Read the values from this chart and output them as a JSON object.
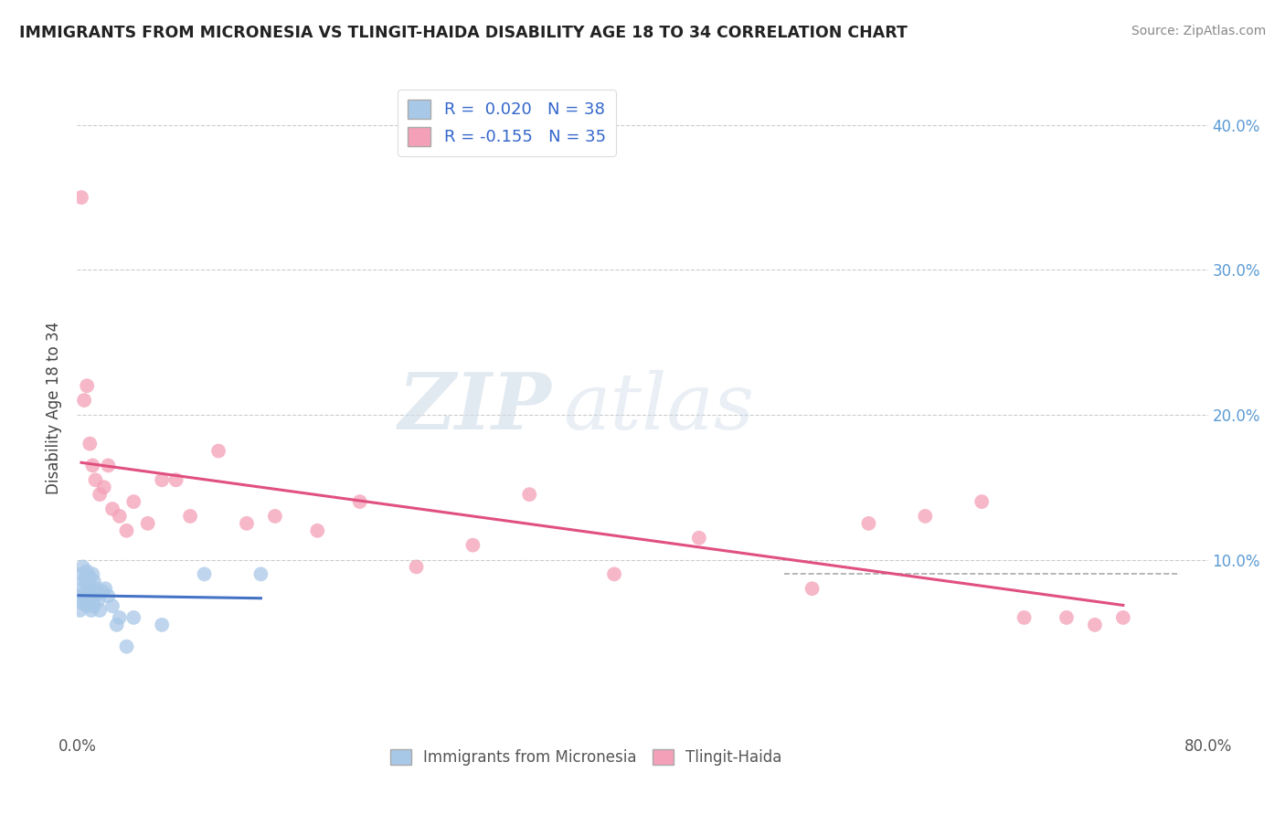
{
  "title": "IMMIGRANTS FROM MICRONESIA VS TLINGIT-HAIDA DISABILITY AGE 18 TO 34 CORRELATION CHART",
  "source": "Source: ZipAtlas.com",
  "ylabel": "Disability Age 18 to 34",
  "xlim": [
    0.0,
    0.8
  ],
  "ylim": [
    -0.02,
    0.43
  ],
  "blue_R": "0.020",
  "blue_N": "38",
  "pink_R": "-0.155",
  "pink_N": "35",
  "blue_color": "#a8c8e8",
  "pink_color": "#f4a0b8",
  "blue_line_color": "#4472c4",
  "pink_line_color": "#e05080",
  "legend_label_blue": "Immigrants from Micronesia",
  "legend_label_pink": "Tlingit-Haida",
  "watermark_zip": "ZIP",
  "watermark_atlas": "atlas",
  "blue_scatter_x": [
    0.001,
    0.002,
    0.003,
    0.003,
    0.004,
    0.004,
    0.005,
    0.005,
    0.006,
    0.006,
    0.007,
    0.007,
    0.007,
    0.008,
    0.008,
    0.009,
    0.009,
    0.01,
    0.01,
    0.011,
    0.011,
    0.012,
    0.012,
    0.013,
    0.014,
    0.015,
    0.016,
    0.018,
    0.02,
    0.022,
    0.025,
    0.028,
    0.03,
    0.035,
    0.04,
    0.06,
    0.09,
    0.13
  ],
  "blue_scatter_y": [
    0.075,
    0.065,
    0.08,
    0.09,
    0.07,
    0.095,
    0.075,
    0.085,
    0.072,
    0.088,
    0.068,
    0.078,
    0.092,
    0.07,
    0.082,
    0.074,
    0.088,
    0.065,
    0.08,
    0.072,
    0.09,
    0.068,
    0.085,
    0.075,
    0.08,
    0.072,
    0.065,
    0.078,
    0.08,
    0.075,
    0.068,
    0.055,
    0.06,
    0.04,
    0.06,
    0.055,
    0.09,
    0.09
  ],
  "pink_scatter_x": [
    0.003,
    0.005,
    0.007,
    0.009,
    0.011,
    0.013,
    0.016,
    0.019,
    0.022,
    0.025,
    0.03,
    0.035,
    0.04,
    0.05,
    0.06,
    0.07,
    0.08,
    0.1,
    0.12,
    0.14,
    0.17,
    0.2,
    0.24,
    0.28,
    0.32,
    0.38,
    0.44,
    0.52,
    0.56,
    0.6,
    0.64,
    0.67,
    0.7,
    0.72,
    0.74
  ],
  "pink_scatter_y": [
    0.35,
    0.21,
    0.22,
    0.18,
    0.165,
    0.155,
    0.145,
    0.15,
    0.165,
    0.135,
    0.13,
    0.12,
    0.14,
    0.125,
    0.155,
    0.155,
    0.13,
    0.175,
    0.125,
    0.13,
    0.12,
    0.14,
    0.095,
    0.11,
    0.145,
    0.09,
    0.115,
    0.08,
    0.125,
    0.13,
    0.14,
    0.06,
    0.06,
    0.055,
    0.06
  ]
}
